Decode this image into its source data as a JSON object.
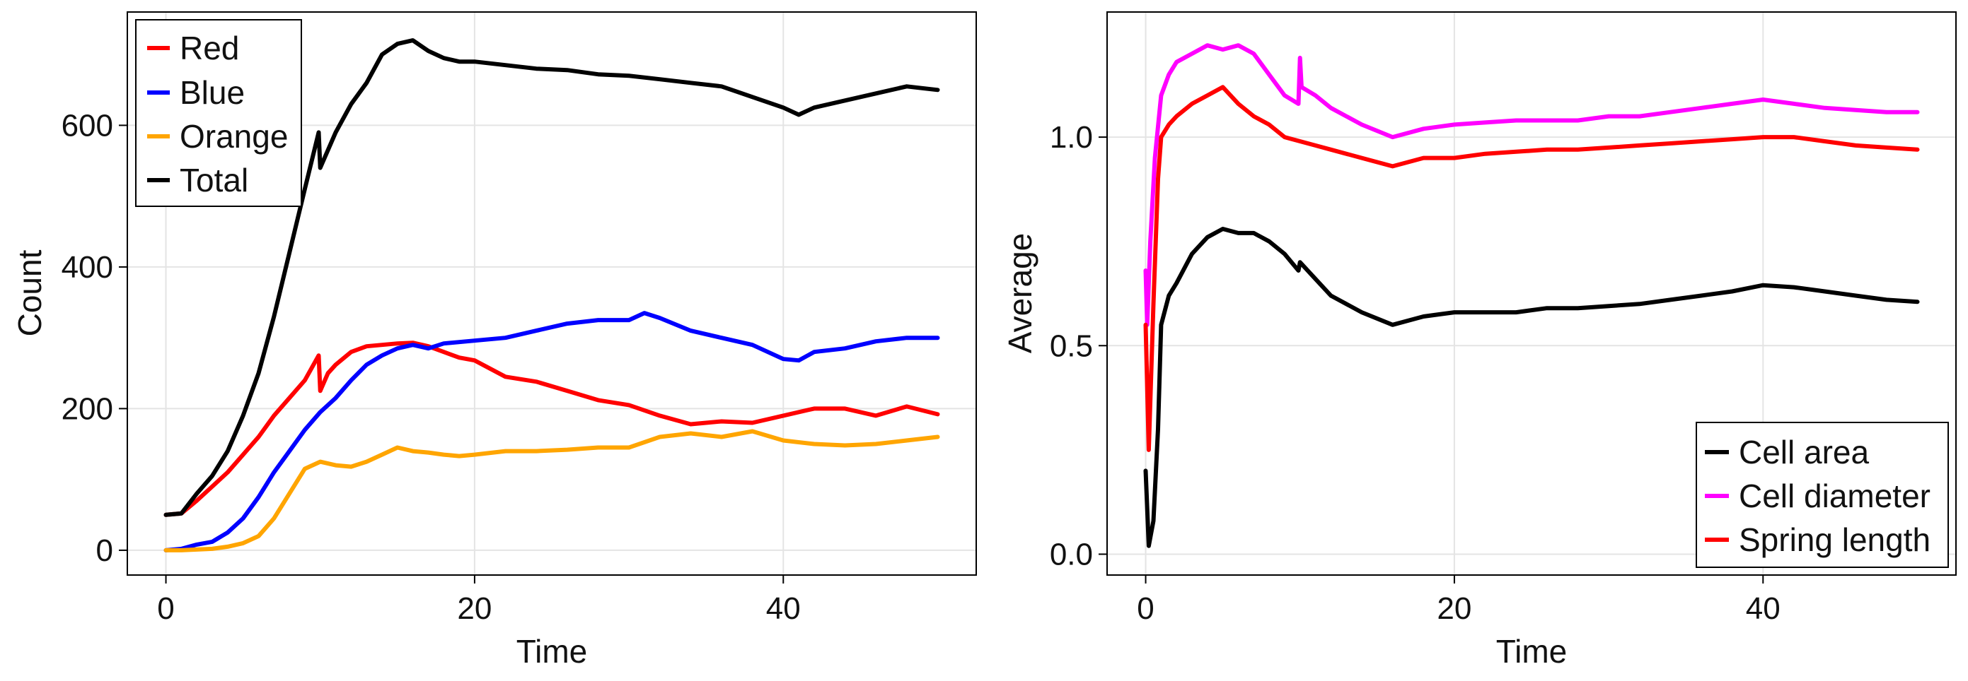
{
  "chart_data": [
    {
      "type": "line",
      "title": "",
      "xlabel": "Time",
      "ylabel": "Count",
      "xlim": [
        -2.5,
        52.5
      ],
      "ylim": [
        -35,
        760
      ],
      "xticks": [
        0,
        20,
        40
      ],
      "xtick_labels": [
        "0",
        "20",
        "40"
      ],
      "yticks": [
        0,
        200,
        400,
        600
      ],
      "ytick_labels": [
        "0",
        "200",
        "400",
        "600"
      ],
      "grid": true,
      "legend_position": "top-left",
      "series": [
        {
          "name": "Red",
          "color": "#ff0000",
          "x": [
            0,
            1,
            2,
            3,
            4,
            5,
            6,
            7,
            8,
            9,
            9.9,
            10,
            10.5,
            11,
            12,
            13,
            14,
            15,
            16,
            17,
            18,
            19,
            20,
            22,
            24,
            26,
            28,
            30,
            32,
            34,
            36,
            38,
            40,
            42,
            44,
            46,
            48,
            50
          ],
          "y": [
            50,
            52,
            70,
            90,
            110,
            135,
            160,
            190,
            215,
            240,
            275,
            225,
            250,
            262,
            280,
            288,
            290,
            292,
            293,
            288,
            280,
            272,
            268,
            245,
            238,
            225,
            212,
            205,
            190,
            178,
            182,
            180,
            190,
            200,
            200,
            190,
            203,
            192
          ]
        },
        {
          "name": "Blue",
          "color": "#0000ff",
          "x": [
            0,
            1,
            2,
            3,
            4,
            5,
            6,
            7,
            8,
            9,
            10,
            11,
            12,
            13,
            14,
            15,
            16,
            17,
            18,
            20,
            22,
            24,
            26,
            28,
            30,
            31,
            32,
            34,
            36,
            38,
            40,
            41,
            42,
            44,
            46,
            48,
            50
          ],
          "y": [
            0,
            2,
            8,
            12,
            25,
            45,
            75,
            110,
            140,
            170,
            195,
            215,
            240,
            262,
            275,
            285,
            290,
            285,
            292,
            296,
            300,
            310,
            320,
            325,
            325,
            335,
            328,
            310,
            300,
            290,
            270,
            268,
            280,
            285,
            295,
            300,
            300
          ]
        },
        {
          "name": "Orange",
          "color": "#ffa500",
          "x": [
            0,
            1,
            2,
            3,
            4,
            5,
            6,
            7,
            8,
            9,
            10,
            11,
            12,
            13,
            14,
            15,
            16,
            17,
            18,
            19,
            20,
            22,
            24,
            26,
            28,
            30,
            32,
            34,
            36,
            38,
            40,
            42,
            44,
            46,
            48,
            50
          ],
          "y": [
            0,
            0,
            1,
            2,
            5,
            10,
            20,
            45,
            80,
            115,
            125,
            120,
            118,
            125,
            135,
            145,
            140,
            138,
            135,
            133,
            135,
            140,
            140,
            142,
            145,
            145,
            160,
            165,
            160,
            168,
            155,
            150,
            148,
            150,
            155,
            160
          ]
        },
        {
          "name": "Total",
          "color": "#000000",
          "x": [
            0,
            1,
            2,
            3,
            4,
            5,
            6,
            7,
            8,
            9,
            9.9,
            10,
            11,
            12,
            13,
            14,
            15,
            16,
            17,
            18,
            19,
            20,
            22,
            24,
            26,
            28,
            30,
            32,
            34,
            36,
            38,
            40,
            41,
            42,
            44,
            46,
            48,
            50
          ],
          "y": [
            50,
            52,
            80,
            105,
            140,
            190,
            250,
            330,
            420,
            510,
            590,
            540,
            590,
            630,
            660,
            700,
            715,
            720,
            705,
            695,
            690,
            690,
            685,
            680,
            678,
            672,
            670,
            665,
            660,
            655,
            640,
            625,
            615,
            625,
            635,
            645,
            655,
            650
          ]
        }
      ]
    },
    {
      "type": "line",
      "title": "",
      "xlabel": "Time",
      "ylabel": "Average",
      "xlim": [
        -2.5,
        52.5
      ],
      "ylim": [
        -0.05,
        1.3
      ],
      "xticks": [
        0,
        20,
        40
      ],
      "xtick_labels": [
        "0",
        "20",
        "40"
      ],
      "yticks": [
        0,
        0.5,
        1.0
      ],
      "ytick_labels": [
        "0.0",
        "0.5",
        "1.0"
      ],
      "grid": true,
      "legend_position": "bottom-right",
      "series": [
        {
          "name": "Cell area",
          "color": "#000000",
          "x": [
            0,
            0.2,
            0.5,
            0.8,
            1,
            1.5,
            2,
            3,
            4,
            5,
            6,
            7,
            8,
            9,
            9.9,
            10,
            11,
            12,
            14,
            16,
            18,
            20,
            22,
            24,
            26,
            28,
            30,
            32,
            34,
            36,
            38,
            40,
            42,
            44,
            46,
            48,
            50
          ],
          "y": [
            0.2,
            0.02,
            0.08,
            0.3,
            0.55,
            0.62,
            0.65,
            0.72,
            0.76,
            0.78,
            0.77,
            0.77,
            0.75,
            0.72,
            0.68,
            0.7,
            0.66,
            0.62,
            0.58,
            0.55,
            0.57,
            0.58,
            0.58,
            0.58,
            0.59,
            0.59,
            0.595,
            0.6,
            0.61,
            0.62,
            0.63,
            0.645,
            0.64,
            0.63,
            0.62,
            0.61,
            0.605
          ]
        },
        {
          "name": "Cell diameter",
          "color": "#ff00ff",
          "x": [
            0,
            0.1,
            0.3,
            0.6,
            1,
            1.5,
            2,
            3,
            4,
            5,
            6,
            7,
            8,
            9,
            9.9,
            10,
            10.1,
            11,
            12,
            14,
            16,
            18,
            20,
            22,
            24,
            26,
            28,
            30,
            32,
            34,
            36,
            38,
            40,
            42,
            44,
            46,
            48,
            50
          ],
          "y": [
            0.68,
            0.55,
            0.75,
            0.95,
            1.1,
            1.15,
            1.18,
            1.2,
            1.22,
            1.21,
            1.22,
            1.2,
            1.15,
            1.1,
            1.08,
            1.19,
            1.12,
            1.1,
            1.07,
            1.03,
            1.0,
            1.02,
            1.03,
            1.035,
            1.04,
            1.04,
            1.04,
            1.05,
            1.05,
            1.06,
            1.07,
            1.08,
            1.09,
            1.08,
            1.07,
            1.065,
            1.06,
            1.06
          ]
        },
        {
          "name": "Spring length",
          "color": "#ff0000",
          "x": [
            0,
            0.2,
            0.5,
            0.8,
            1,
            1.5,
            2,
            3,
            4,
            5,
            6,
            7,
            8,
            9,
            10,
            11,
            12,
            14,
            16,
            18,
            20,
            22,
            24,
            26,
            28,
            30,
            32,
            34,
            36,
            38,
            40,
            42,
            44,
            46,
            48,
            50
          ],
          "y": [
            0.55,
            0.25,
            0.6,
            0.9,
            1.0,
            1.03,
            1.05,
            1.08,
            1.1,
            1.12,
            1.08,
            1.05,
            1.03,
            1.0,
            0.99,
            0.98,
            0.97,
            0.95,
            0.93,
            0.95,
            0.95,
            0.96,
            0.965,
            0.97,
            0.97,
            0.975,
            0.98,
            0.985,
            0.99,
            0.995,
            1.0,
            1.0,
            0.99,
            0.98,
            0.975,
            0.97
          ]
        }
      ]
    }
  ]
}
